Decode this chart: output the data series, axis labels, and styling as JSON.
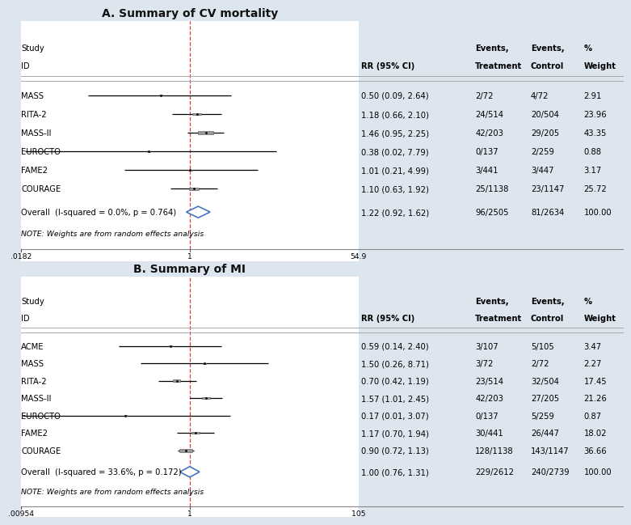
{
  "panel_A": {
    "title": "A. Summary of CV mortality",
    "studies": [
      "MASS",
      "RITA-2",
      "MASS-II",
      "EUROCTO",
      "FAME2",
      "COURAGE"
    ],
    "rr": [
      0.5,
      1.18,
      1.46,
      0.38,
      1.01,
      1.1
    ],
    "ci_low": [
      0.09,
      0.66,
      0.95,
      0.02,
      0.21,
      0.63
    ],
    "ci_high": [
      2.64,
      2.1,
      2.25,
      7.79,
      4.99,
      1.92
    ],
    "weights": [
      2.91,
      23.96,
      43.35,
      0.88,
      3.17,
      25.72
    ],
    "overall_rr": 1.22,
    "overall_ci_low": 0.92,
    "overall_ci_high": 1.62,
    "overall_label": "Overall  (I-squared = 0.0%, p = 0.764)",
    "rr_labels": [
      "0.50 (0.09, 2.64)",
      "1.18 (0.66, 2.10)",
      "1.46 (0.95, 2.25)",
      "0.38 (0.02, 7.79)",
      "1.01 (0.21, 4.99)",
      "1.10 (0.63, 1.92)"
    ],
    "overall_rr_label": "1.22 (0.92, 1.62)",
    "events_treatment": [
      "2/72",
      "24/514",
      "42/203",
      "0/137",
      "3/441",
      "25/1138"
    ],
    "events_control": [
      "4/72",
      "20/504",
      "29/205",
      "2/259",
      "3/447",
      "23/1147"
    ],
    "pct_weight": [
      "2.91",
      "23.96",
      "43.35",
      "0.88",
      "3.17",
      "25.72"
    ],
    "overall_events_treatment": "96/2505",
    "overall_events_control": "81/2634",
    "overall_pct_weight": "100.00",
    "xmin": 0.0182,
    "xmax": 54.9,
    "xref": 1.0,
    "xtick_labels": [
      ".0182",
      "1",
      "54.9"
    ],
    "note": "NOTE: Weights are from random effects analysis",
    "eurocto_idx": 3
  },
  "panel_B": {
    "title": "B. Summary of MI",
    "studies": [
      "ACME",
      "MASS",
      "RITA-2",
      "MASS-II",
      "EUROCTO",
      "FAME2",
      "COURAGE"
    ],
    "rr": [
      0.59,
      1.5,
      0.7,
      1.57,
      0.17,
      1.17,
      0.9
    ],
    "ci_low": [
      0.14,
      0.26,
      0.42,
      1.01,
      0.01,
      0.7,
      0.72
    ],
    "ci_high": [
      2.4,
      8.71,
      1.19,
      2.45,
      3.07,
      1.94,
      1.13
    ],
    "weights": [
      3.47,
      2.27,
      17.45,
      21.26,
      0.87,
      18.02,
      36.66
    ],
    "overall_rr": 1.0,
    "overall_ci_low": 0.76,
    "overall_ci_high": 1.31,
    "overall_label": "Overall  (I-squared = 33.6%, p = 0.172)",
    "rr_labels": [
      "0.59 (0.14, 2.40)",
      "1.50 (0.26, 8.71)",
      "0.70 (0.42, 1.19)",
      "1.57 (1.01, 2.45)",
      "0.17 (0.01, 3.07)",
      "1.17 (0.70, 1.94)",
      "0.90 (0.72, 1.13)"
    ],
    "overall_rr_label": "1.00 (0.76, 1.31)",
    "events_treatment": [
      "3/107",
      "3/72",
      "23/514",
      "42/203",
      "0/137",
      "30/441",
      "128/1138"
    ],
    "events_control": [
      "5/105",
      "2/72",
      "32/504",
      "27/205",
      "5/259",
      "26/447",
      "143/1147"
    ],
    "pct_weight": [
      "3.47",
      "2.27",
      "17.45",
      "21.26",
      "0.87",
      "18.02",
      "36.66"
    ],
    "overall_events_treatment": "229/2612",
    "overall_events_control": "240/2739",
    "overall_pct_weight": "100.00",
    "xmin": 0.00954,
    "xmax": 105,
    "xref": 1.0,
    "xtick_labels": [
      ".00954",
      "1",
      "105"
    ],
    "note": "NOTE: Weights are from random effects analysis",
    "eurocto_idx": 4
  },
  "fig_bg": "#dde6ef",
  "panel_bg": "#ffffff",
  "box_color": "#999999",
  "box_edge": "#555555",
  "diamond_face": "#ffffff",
  "diamond_edge": "#4477bb",
  "line_color": "#000000",
  "ref_line_color": "#cc2222",
  "text_color": "#000000",
  "fs": 7.2
}
